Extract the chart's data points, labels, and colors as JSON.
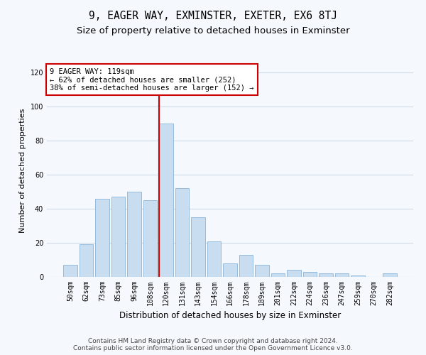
{
  "title": "9, EAGER WAY, EXMINSTER, EXETER, EX6 8TJ",
  "subtitle": "Size of property relative to detached houses in Exminster",
  "xlabel": "Distribution of detached houses by size in Exminster",
  "ylabel": "Number of detached properties",
  "categories": [
    "50sqm",
    "62sqm",
    "73sqm",
    "85sqm",
    "96sqm",
    "108sqm",
    "120sqm",
    "131sqm",
    "143sqm",
    "154sqm",
    "166sqm",
    "178sqm",
    "189sqm",
    "201sqm",
    "212sqm",
    "224sqm",
    "236sqm",
    "247sqm",
    "259sqm",
    "270sqm",
    "282sqm"
  ],
  "values": [
    7,
    19,
    46,
    47,
    50,
    45,
    90,
    52,
    35,
    21,
    8,
    13,
    7,
    2,
    4,
    3,
    2,
    2,
    1,
    0,
    2
  ],
  "bar_color": "#c9ddf1",
  "bar_edge_color": "#8ab4d8",
  "vline_x_index": 6,
  "vline_color": "#cc0000",
  "annotation_lines": [
    "9 EAGER WAY: 119sqm",
    "← 62% of detached houses are smaller (252)",
    "38% of semi-detached houses are larger (152) →"
  ],
  "annotation_box_color": "#cc0000",
  "ylim": [
    0,
    125
  ],
  "yticks": [
    0,
    20,
    40,
    60,
    80,
    100,
    120
  ],
  "grid_color": "#d0dce8",
  "background_color": "#f5f8fd",
  "plot_bg_color": "#f5f8fd",
  "footer_line1": "Contains HM Land Registry data © Crown copyright and database right 2024.",
  "footer_line2": "Contains public sector information licensed under the Open Government Licence v3.0.",
  "title_fontsize": 10.5,
  "subtitle_fontsize": 9.5,
  "xlabel_fontsize": 8.5,
  "ylabel_fontsize": 8,
  "tick_fontsize": 7,
  "annotation_fontsize": 7.5,
  "footer_fontsize": 6.5
}
